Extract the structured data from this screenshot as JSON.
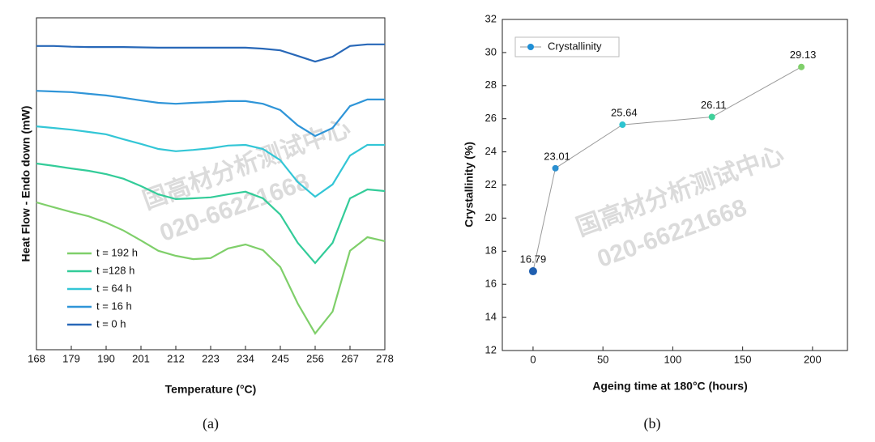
{
  "chart_data": [
    {
      "type": "line",
      "y_label": "Heat Flow - Endo down (mW)",
      "x_label": "Temperature (°C)",
      "caption": "(a)",
      "watermark": [
        "国高材分析测试中心",
        "020-66221668"
      ],
      "xlim": [
        168,
        278
      ],
      "ylim": [
        0,
        100
      ],
      "xticks": [
        168,
        179,
        190,
        201,
        212,
        223,
        234,
        245,
        256,
        267,
        278
      ],
      "x": [
        168,
        173.5,
        179,
        184.5,
        190,
        195.5,
        201,
        206.5,
        212,
        217.5,
        223,
        228.5,
        234,
        239.5,
        245,
        250.5,
        256,
        261.5,
        267,
        272.5,
        278
      ],
      "legend": "lower left",
      "series": [
        {
          "name": "t = 192 h",
          "color": "#7fcf6a",
          "values": [
            44.4,
            42.9,
            41.5,
            40.2,
            38.3,
            35.9,
            32.9,
            29.8,
            28.3,
            27.3,
            27.6,
            30.5,
            31.7,
            30.0,
            24.9,
            13.9,
            4.9,
            11.5,
            29.8,
            33.9,
            32.7
          ]
        },
        {
          "name": "t =128 h",
          "color": "#33cc99",
          "values": [
            56.1,
            55.4,
            54.6,
            53.9,
            52.9,
            51.5,
            49.3,
            46.8,
            45.4,
            45.6,
            45.9,
            46.8,
            47.6,
            45.6,
            40.7,
            32.2,
            26.1,
            32.2,
            45.6,
            48.3,
            47.8
          ]
        },
        {
          "name": "t = 64 h",
          "color": "#33c6d6",
          "values": [
            67.3,
            66.8,
            66.3,
            65.6,
            64.9,
            63.4,
            62.0,
            60.5,
            59.8,
            60.2,
            60.7,
            61.5,
            61.7,
            60.5,
            57.1,
            50.5,
            46.1,
            49.8,
            58.5,
            61.7,
            61.7
          ]
        },
        {
          "name": "t = 16 h",
          "color": "#2f95d8",
          "values": [
            78.0,
            77.8,
            77.6,
            77.1,
            76.6,
            75.9,
            75.1,
            74.4,
            74.1,
            74.4,
            74.6,
            74.9,
            74.9,
            74.1,
            72.2,
            67.6,
            64.4,
            66.8,
            73.4,
            75.4,
            75.4
          ]
        },
        {
          "name": "t = 0 h",
          "color": "#2868b8",
          "values": [
            91.5,
            91.5,
            91.3,
            91.2,
            91.2,
            91.2,
            91.1,
            91.0,
            91.0,
            91.0,
            91.0,
            91.0,
            91.0,
            90.7,
            90.2,
            88.5,
            86.8,
            88.3,
            91.5,
            92.0,
            92.0
          ]
        }
      ]
    },
    {
      "type": "scatter",
      "y_label": "Crystallinity (%)",
      "x_label": "Ageing time at 180°C (hours)",
      "caption": "(b)",
      "watermark": [
        "国高材分析测试中心",
        "020-66221668"
      ],
      "xlim": [
        -22,
        225
      ],
      "ylim": [
        12,
        32
      ],
      "xticks": [
        0,
        50,
        100,
        150,
        200
      ],
      "yticks": [
        12,
        14,
        16,
        18,
        20,
        22,
        24,
        26,
        28,
        30,
        32
      ],
      "x": [
        0,
        16,
        64,
        128,
        192
      ],
      "legend": "upper left",
      "line_color": "#9a9a9a",
      "series": [
        {
          "name": "Crystallinity",
          "color": "#1f8fd6",
          "point_colors": [
            "#1f5fb0",
            "#2a8fd0",
            "#2ec4d0",
            "#3fd09a",
            "#7fcf6a"
          ],
          "values": [
            16.79,
            23.01,
            25.64,
            26.11,
            29.13
          ]
        }
      ]
    }
  ]
}
